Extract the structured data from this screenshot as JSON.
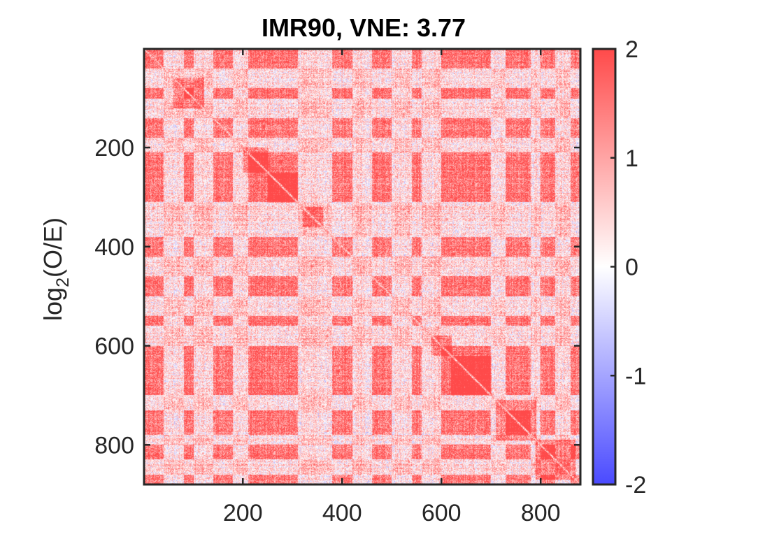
{
  "chart_data": {
    "type": "heatmap",
    "title": "IMR90, VNE: 3.77",
    "xlabel": "",
    "ylabel_base": "log",
    "ylabel_sub": "2",
    "ylabel_rest": "(O/E)",
    "matrix_size": 880,
    "xlim": [
      1,
      880
    ],
    "ylim": [
      1,
      880
    ],
    "x_ticks": [
      200,
      400,
      600,
      800
    ],
    "x_tick_labels": [
      "200",
      "400",
      "600",
      "800"
    ],
    "y_ticks": [
      200,
      400,
      600,
      800
    ],
    "y_tick_labels": [
      "200",
      "400",
      "600",
      "800"
    ],
    "colorbar": {
      "range": [
        -2,
        2
      ],
      "ticks": [
        2,
        1,
        0,
        -1,
        -2
      ],
      "tick_labels": [
        "2",
        "1",
        "0",
        "-1",
        "-2"
      ],
      "color_low": "#4a4aff",
      "color_mid": "#ffffff",
      "color_high": "#ff4a4a"
    },
    "compartment_boundaries": [
      0,
      40,
      80,
      100,
      140,
      180,
      210,
      270,
      310,
      340,
      380,
      420,
      460,
      500,
      540,
      560,
      600,
      640,
      700,
      730,
      780,
      800,
      830,
      860,
      880
    ],
    "compartment_types": [
      "A",
      "B",
      "A",
      "B",
      "A",
      "B",
      "A",
      "A",
      "B",
      "B",
      "A",
      "B",
      "A",
      "B",
      "A",
      "B",
      "A",
      "A",
      "B",
      "A",
      "B",
      "A",
      "B",
      "A"
    ],
    "diagonal_domains": [
      {
        "start": 60,
        "end": 120
      },
      {
        "start": 200,
        "end": 250
      },
      {
        "start": 250,
        "end": 310
      },
      {
        "start": 320,
        "end": 360
      },
      {
        "start": 580,
        "end": 620
      },
      {
        "start": 620,
        "end": 700
      },
      {
        "start": 710,
        "end": 790
      },
      {
        "start": 790,
        "end": 870
      }
    ],
    "values_note_scale_log2_OE": true
  }
}
